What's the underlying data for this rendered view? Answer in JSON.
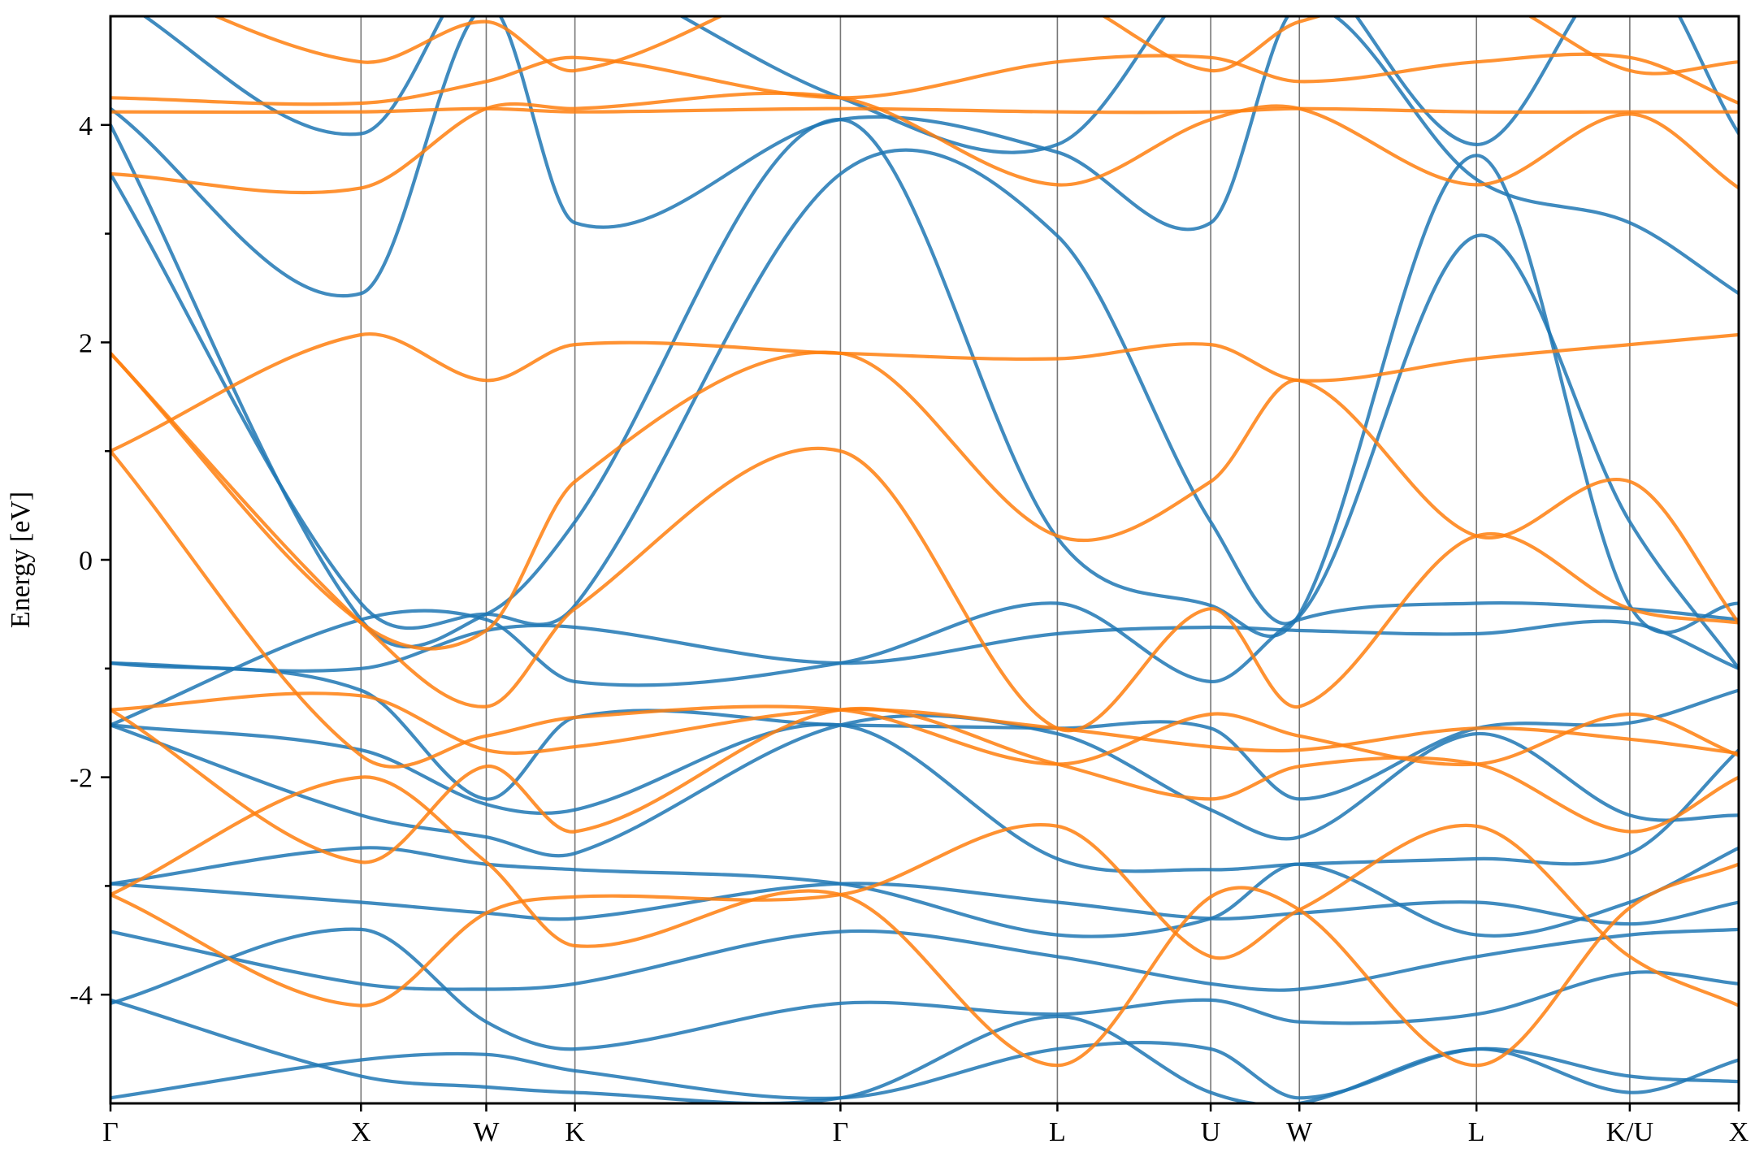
{
  "chart_data": {
    "type": "line",
    "ylabel": "Energy [eV]",
    "ylim": [
      -5,
      5
    ],
    "y_ticks": [
      -4,
      -2,
      0,
      2,
      4
    ],
    "y_tick_labels": [
      "-4",
      "-2",
      "0",
      "2",
      "4"
    ],
    "y_minor_ticks": [
      -3,
      -1,
      1,
      3
    ],
    "x_range": [
      0,
      6.5
    ],
    "k_points": [
      {
        "label": "Γ",
        "x": 0
      },
      {
        "label": "X",
        "x": 1.0
      },
      {
        "label": "W",
        "x": 1.5
      },
      {
        "label": "K",
        "x": 1.854
      },
      {
        "label": "Γ",
        "x": 2.914
      },
      {
        "label": "L",
        "x": 3.78
      },
      {
        "label": "U",
        "x": 4.392
      },
      {
        "label": "W",
        "x": 4.746
      },
      {
        "label": "L",
        "x": 5.453
      },
      {
        "label": "K/U",
        "x": 6.065
      },
      {
        "label": "X",
        "x": 6.5
      }
    ],
    "grid": false,
    "legend": "none",
    "colors": {
      "spin_up": "#1f77b4",
      "spin_down": "#ff7f0e"
    },
    "series": [
      {
        "color": "#1f77b4",
        "x": [
          0,
          1.0,
          1.5,
          1.854,
          2.914,
          3.78,
          4.392,
          4.746,
          5.453,
          6.065,
          6.5
        ],
        "y": [
          -4.95,
          -4.6,
          -4.55,
          -4.7,
          -4.95,
          -4.5,
          -4.5,
          -4.95,
          -4.5,
          -4.75,
          -4.8
        ]
      },
      {
        "color": "#1f77b4",
        "x": [
          0,
          1.0,
          1.5,
          1.854,
          2.914,
          3.78,
          4.392,
          4.746,
          5.453,
          6.065,
          6.5
        ],
        "y": [
          -4.05,
          -4.75,
          -4.85,
          -4.9,
          -4.95,
          -4.2,
          -4.9,
          -5.0,
          -4.5,
          -4.9,
          -4.6
        ]
      },
      {
        "color": "#1f77b4",
        "x": [
          0,
          1.0,
          1.5,
          1.854,
          2.914,
          3.78,
          4.392,
          4.746,
          5.453,
          6.065,
          6.5
        ],
        "y": [
          -4.08,
          -3.4,
          -4.25,
          -4.5,
          -4.08,
          -4.18,
          -4.05,
          -4.25,
          -4.18,
          -3.8,
          -3.9
        ]
      },
      {
        "color": "#1f77b4",
        "x": [
          0,
          1.0,
          1.5,
          1.854,
          2.914,
          3.78,
          4.392,
          4.746,
          5.453,
          6.065,
          6.5
        ],
        "y": [
          -3.42,
          -3.9,
          -3.95,
          -3.9,
          -3.42,
          -3.65,
          -3.9,
          -3.95,
          -3.65,
          -3.45,
          -3.4
        ]
      },
      {
        "color": "#1f77b4",
        "x": [
          0,
          1.0,
          1.5,
          1.854,
          2.914,
          3.78,
          4.392,
          4.746,
          5.453,
          6.065,
          6.5
        ],
        "y": [
          -2.98,
          -3.15,
          -3.25,
          -3.3,
          -2.98,
          -3.15,
          -3.3,
          -3.25,
          -3.15,
          -3.35,
          -3.15
        ]
      },
      {
        "color": "#1f77b4",
        "x": [
          0,
          1.0,
          1.5,
          1.854,
          2.914,
          3.78,
          4.392,
          4.746,
          5.453,
          6.065,
          6.5
        ],
        "y": [
          -2.98,
          -2.65,
          -2.8,
          -2.85,
          -2.98,
          -3.45,
          -3.3,
          -2.8,
          -3.45,
          -3.15,
          -2.65
        ]
      },
      {
        "color": "#1f77b4",
        "x": [
          0,
          1.0,
          1.5,
          1.854,
          2.914,
          3.78,
          4.392,
          4.746,
          5.453,
          6.065,
          6.5
        ],
        "y": [
          -1.52,
          -1.75,
          -2.25,
          -2.3,
          -1.52,
          -2.75,
          -2.85,
          -2.8,
          -2.75,
          -2.7,
          -1.75
        ]
      },
      {
        "color": "#1f77b4",
        "x": [
          0,
          1.0,
          1.5,
          1.854,
          2.914,
          3.78,
          4.392,
          4.746,
          5.453,
          6.065,
          6.5
        ],
        "y": [
          -1.52,
          -2.35,
          -2.55,
          -2.7,
          -1.52,
          -1.6,
          -2.3,
          -2.55,
          -1.6,
          -2.35,
          -2.35
        ]
      },
      {
        "color": "#1f77b4",
        "x": [
          0,
          1.0,
          1.5,
          1.854,
          2.914,
          3.78,
          4.392,
          4.746,
          5.453,
          6.065,
          6.5
        ],
        "y": [
          -0.95,
          -1.2,
          -2.2,
          -1.45,
          -1.52,
          -1.55,
          -1.55,
          -2.2,
          -1.55,
          -1.5,
          -1.2
        ]
      },
      {
        "color": "#1f77b4",
        "x": [
          0,
          1.0,
          1.5,
          1.854,
          2.914,
          3.78,
          4.392,
          4.746,
          5.453,
          6.065,
          6.5
        ],
        "y": [
          -0.95,
          -1.0,
          -0.65,
          -0.62,
          -0.95,
          -0.68,
          -0.62,
          -0.65,
          -0.68,
          -0.58,
          -1.0
        ]
      },
      {
        "color": "#1f77b4",
        "x": [
          0,
          1.0,
          1.5,
          1.854,
          2.914,
          3.78,
          4.392,
          4.746,
          5.453,
          6.065,
          6.5
        ],
        "y": [
          -1.52,
          -0.55,
          -0.55,
          -1.12,
          -0.95,
          -0.4,
          -1.12,
          -0.55,
          -0.4,
          -0.45,
          -0.55
        ]
      },
      {
        "color": "#1f77b4",
        "x": [
          0,
          1.0,
          1.5,
          1.854,
          2.914,
          3.78,
          4.392,
          4.746,
          5.453,
          6.065,
          6.5
        ],
        "y": [
          3.55,
          -0.4,
          -0.5,
          -0.42,
          3.55,
          2.98,
          0.35,
          -0.52,
          2.98,
          0.35,
          -1.0
        ]
      },
      {
        "color": "#1f77b4",
        "x": [
          0,
          1.0,
          1.5,
          1.854,
          2.914,
          3.78,
          4.392,
          4.746,
          5.453,
          6.065,
          6.5
        ],
        "y": [
          4.0,
          -0.55,
          -0.5,
          0.35,
          4.05,
          0.2,
          -0.42,
          -0.5,
          3.72,
          -0.42,
          -0.4
        ]
      },
      {
        "color": "#1f77b4",
        "x": [
          0,
          1.0,
          1.5,
          1.854,
          2.914,
          3.78,
          4.392,
          4.746,
          5.453,
          6.065,
          6.5
        ],
        "y": [
          4.15,
          2.45,
          5.1,
          3.1,
          4.05,
          3.75,
          3.1,
          5.1,
          3.5,
          3.1,
          2.45
        ]
      },
      {
        "color": "#1f77b4",
        "x": [
          0,
          1.0,
          1.5,
          1.854,
          2.914,
          3.78,
          4.392,
          4.746,
          5.453,
          6.065,
          6.5
        ],
        "y": [
          5.2,
          3.92,
          5.6,
          5.5,
          4.25,
          3.82,
          5.5,
          5.6,
          3.82,
          5.5,
          3.92
        ]
      },
      {
        "color": "#ff7f0e",
        "x": [
          0,
          1.0,
          1.5,
          1.854,
          2.914,
          3.78,
          4.392,
          4.746,
          5.453,
          6.065,
          6.5
        ],
        "y": [
          -3.08,
          -4.1,
          -3.25,
          -3.1,
          -3.08,
          -2.45,
          -3.65,
          -3.22,
          -2.45,
          -3.65,
          -4.1
        ]
      },
      {
        "color": "#ff7f0e",
        "x": [
          0,
          1.0,
          1.5,
          1.854,
          2.914,
          3.78,
          4.392,
          4.746,
          5.453,
          6.065,
          6.5
        ],
        "y": [
          -3.08,
          -2.0,
          -2.78,
          -3.55,
          -3.08,
          -4.65,
          -3.1,
          -3.22,
          -4.65,
          -3.2,
          -2.8
        ]
      },
      {
        "color": "#ff7f0e",
        "x": [
          0,
          1.0,
          1.5,
          1.854,
          2.914,
          3.78,
          4.392,
          4.746,
          5.453,
          6.065,
          6.5
        ],
        "y": [
          -1.38,
          -2.78,
          -1.9,
          -2.5,
          -1.38,
          -1.88,
          -2.2,
          -1.9,
          -1.88,
          -2.5,
          -2.0
        ]
      },
      {
        "color": "#ff7f0e",
        "x": [
          0,
          1.0,
          1.5,
          1.854,
          2.914,
          3.78,
          4.392,
          4.746,
          5.453,
          6.065,
          6.5
        ],
        "y": [
          -1.38,
          -1.25,
          -1.75,
          -1.72,
          -1.38,
          -1.55,
          -1.72,
          -1.75,
          -1.55,
          -1.65,
          -1.78
        ]
      },
      {
        "color": "#ff7f0e",
        "x": [
          0,
          1.0,
          1.5,
          1.854,
          2.914,
          3.78,
          4.392,
          4.746,
          5.453,
          6.065,
          6.5
        ],
        "y": [
          1.0,
          -1.8,
          -1.62,
          -1.45,
          -1.38,
          -1.88,
          -1.42,
          -1.62,
          -1.88,
          -1.42,
          -1.8
        ]
      },
      {
        "color": "#ff7f0e",
        "x": [
          0,
          1.0,
          1.5,
          1.854,
          2.914,
          3.78,
          4.392,
          4.746,
          5.453,
          6.065,
          6.5
        ],
        "y": [
          1.9,
          -0.58,
          -1.35,
          -0.45,
          1.0,
          -1.55,
          -0.45,
          -1.35,
          0.22,
          -0.45,
          -0.58
        ]
      },
      {
        "color": "#ff7f0e",
        "x": [
          0,
          1.0,
          1.5,
          1.854,
          2.914,
          3.78,
          4.392,
          4.746,
          5.453,
          6.065,
          6.5
        ],
        "y": [
          1.9,
          -0.58,
          -0.65,
          0.72,
          1.9,
          0.22,
          0.72,
          1.65,
          0.22,
          0.72,
          -0.58
        ]
      },
      {
        "color": "#ff7f0e",
        "x": [
          0,
          1.0,
          1.5,
          1.854,
          2.914,
          3.78,
          4.392,
          4.746,
          5.453,
          6.065,
          6.5
        ],
        "y": [
          1.0,
          2.07,
          1.65,
          1.98,
          1.9,
          1.85,
          1.98,
          1.65,
          1.85,
          1.98,
          2.07
        ]
      },
      {
        "color": "#ff7f0e",
        "x": [
          0,
          1.0,
          1.5,
          1.854,
          2.914,
          3.78,
          4.392,
          4.746,
          5.453,
          6.065,
          6.5
        ],
        "y": [
          3.55,
          3.42,
          4.15,
          4.15,
          4.25,
          3.45,
          4.05,
          4.15,
          3.45,
          4.1,
          3.42
        ]
      },
      {
        "color": "#ff7f0e",
        "x": [
          0,
          1.0,
          1.5,
          1.854,
          2.914,
          3.78,
          4.392,
          4.746,
          5.453,
          6.065,
          6.5
        ],
        "y": [
          4.12,
          4.12,
          4.15,
          4.12,
          4.15,
          4.12,
          4.12,
          4.15,
          4.12,
          4.12,
          4.12
        ]
      },
      {
        "color": "#ff7f0e",
        "x": [
          0,
          1.0,
          1.5,
          1.854,
          2.914,
          3.78,
          4.392,
          4.746,
          5.453,
          6.065,
          6.5
        ],
        "y": [
          4.25,
          4.2,
          4.4,
          4.62,
          4.25,
          4.58,
          4.62,
          4.4,
          4.58,
          4.62,
          4.2
        ]
      },
      {
        "color": "#ff7f0e",
        "x": [
          0,
          1.0,
          1.5,
          1.854,
          2.914,
          3.78,
          4.392,
          4.746,
          5.453,
          6.065,
          6.5
        ],
        "y": [
          5.4,
          4.58,
          4.95,
          4.5,
          5.4,
          5.2,
          4.5,
          4.95,
          5.2,
          4.5,
          4.58
        ]
      }
    ]
  }
}
